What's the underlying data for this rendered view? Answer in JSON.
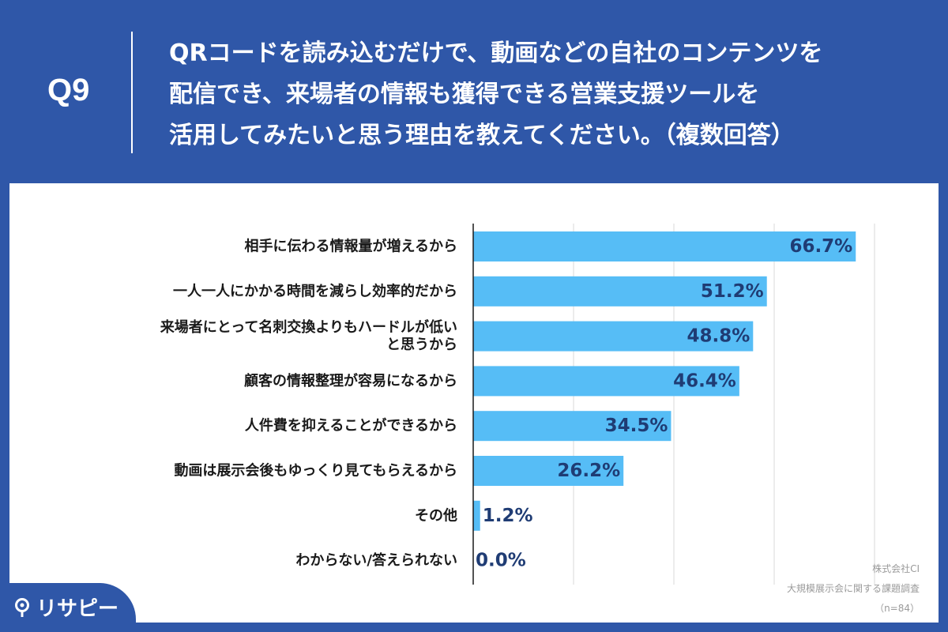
{
  "question": {
    "number": "Q9",
    "lines": [
      "QRコードを読み込むだけで、動画などの自社のコンテンツを",
      "配信でき、来場者の情報も獲得できる営業支援ツールを",
      "活用してみたいと思う理由を教えてください。（複数回答）"
    ]
  },
  "logo": {
    "text": "リサピー"
  },
  "credit": {
    "company": "株式会社CI",
    "survey": "大規模展示会に関する課題調査",
    "sample": "（n=84）"
  },
  "colors": {
    "header_bg": "#2f57a8",
    "bar": "#56bdf6",
    "value_text": "#1f3c74",
    "grid": "#d9d9d9"
  },
  "chart_data": {
    "type": "bar",
    "orientation": "horizontal",
    "categories": [
      [
        "相手に伝わる情報量が増えるから"
      ],
      [
        "一人一人にかかる時間を減らし効率的だから"
      ],
      [
        "来場者にとって名刺交換よりもハードルが低い",
        "と思うから"
      ],
      [
        "顧客の情報整理が容易になるから"
      ],
      [
        "人件費を抑えることができるから"
      ],
      [
        "動画は展示会後もゆっくり見てもらえるから"
      ],
      [
        "その他"
      ],
      [
        "わからない/答えられない"
      ]
    ],
    "values": [
      66.7,
      51.2,
      48.8,
      46.4,
      34.5,
      26.2,
      1.2,
      0.0
    ],
    "value_labels": [
      "66.7%",
      "51.2%",
      "48.8%",
      "46.4%",
      "34.5%",
      "26.2%",
      "1.2%",
      "0.0%"
    ],
    "xlim": [
      0,
      70
    ],
    "grid": true,
    "unit": "%"
  }
}
